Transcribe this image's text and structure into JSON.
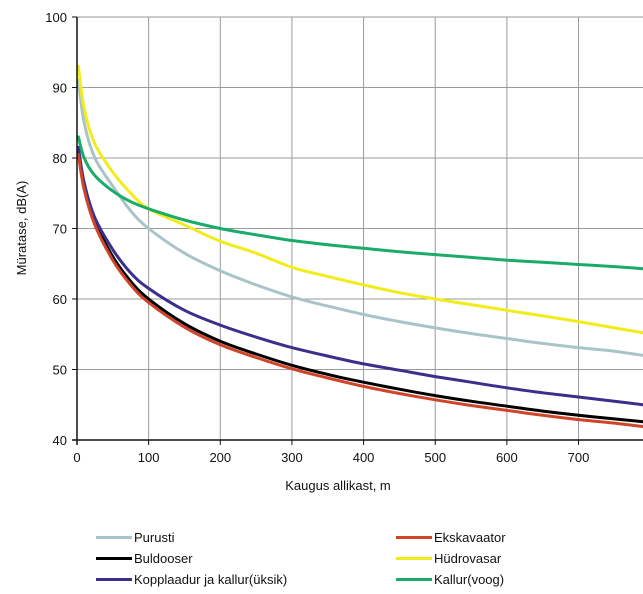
{
  "chart_data": {
    "type": "line",
    "title": "",
    "xlabel": "Kaugus allikast, m",
    "ylabel": "Müratase, dB(A)",
    "xlim": [
      0,
      790
    ],
    "ylim": [
      40,
      100
    ],
    "xticks": [
      0,
      100,
      200,
      300,
      400,
      500,
      600,
      700
    ],
    "yticks": [
      40,
      50,
      60,
      70,
      80,
      90,
      100
    ],
    "grid": true,
    "legend_position": "bottom",
    "x": [
      2,
      10,
      25,
      50,
      75,
      100,
      150,
      200,
      250,
      300,
      350,
      400,
      450,
      500,
      550,
      600,
      650,
      700,
      750,
      790
    ],
    "series": [
      {
        "name": "Purusti",
        "color": "#a8c4c8",
        "values": [
          91,
          85,
          80,
          76,
          72.5,
          70,
          66.5,
          64,
          62,
          60.3,
          59,
          57.8,
          56.8,
          55.9,
          55.1,
          54.4,
          53.7,
          53.1,
          52.6,
          52
        ]
      },
      {
        "name": "Buldooser",
        "color": "#000000",
        "values": [
          81,
          76,
          71,
          66,
          62.5,
          60,
          56.5,
          54,
          52.2,
          50.6,
          49.3,
          48.2,
          47.2,
          46.3,
          45.5,
          44.8,
          44.1,
          43.5,
          43,
          42.6
        ]
      },
      {
        "name": "Kopplaadur ja kallur(üksik)",
        "color": "#3a2f8c",
        "values": [
          81.5,
          76.5,
          71.5,
          67,
          63.7,
          61.5,
          58.4,
          56.3,
          54.6,
          53.1,
          51.9,
          50.8,
          49.9,
          49,
          48.2,
          47.4,
          46.7,
          46.1,
          45.5,
          45
        ]
      },
      {
        "name": "Ekskavaator",
        "color": "#d0452a",
        "values": [
          80.5,
          75.5,
          70.5,
          65.5,
          62,
          59.5,
          56,
          53.5,
          51.7,
          50.1,
          48.8,
          47.6,
          46.6,
          45.7,
          44.9,
          44.2,
          43.5,
          42.9,
          42.4,
          41.9
        ]
      },
      {
        "name": "Hüdrovasar",
        "color": "#f2ec1a",
        "values": [
          93,
          87,
          82,
          78,
          75,
          72.8,
          70.5,
          68.2,
          66.5,
          64.5,
          63.2,
          62,
          60.9,
          60,
          59.2,
          58.4,
          57.6,
          56.8,
          55.9,
          55.2
        ]
      },
      {
        "name": "Kallur(voog)",
        "color": "#1aab68",
        "values": [
          83,
          80,
          77.5,
          75.3,
          73.8,
          72.8,
          71.2,
          70,
          69.1,
          68.3,
          67.7,
          67.2,
          66.7,
          66.3,
          65.9,
          65.5,
          65.2,
          64.9,
          64.6,
          64.3
        ]
      }
    ]
  },
  "legend": [
    {
      "label": "Purusti",
      "color": "#a8c4c8"
    },
    {
      "label": "Ekskavaator",
      "color": "#d0452a"
    },
    {
      "label": "Buldooser",
      "color": "#000000"
    },
    {
      "label": "Hüdrovasar",
      "color": "#f2ec1a"
    },
    {
      "label": "Kopplaadur ja kallur(üksik)",
      "color": "#3a2f8c"
    },
    {
      "label": "Kallur(voog)",
      "color": "#1aab68"
    }
  ]
}
